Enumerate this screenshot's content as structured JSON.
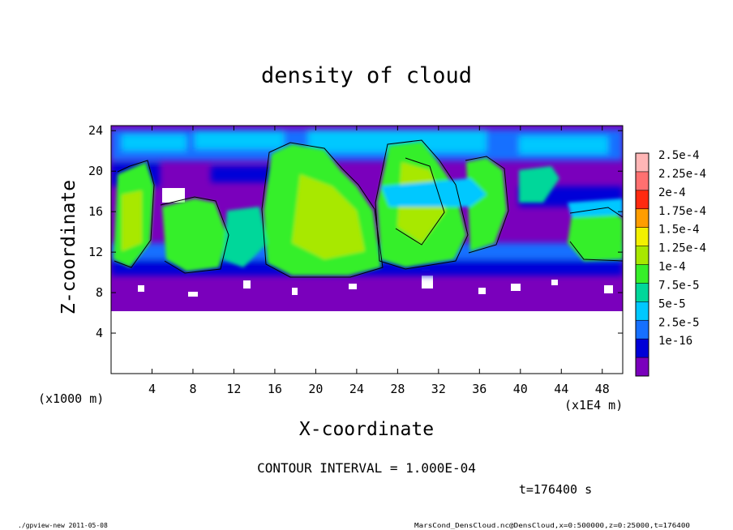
{
  "chart_data": {
    "type": "heatmap",
    "title": "density of cloud",
    "xlabel": "X-coordinate",
    "ylabel": "Z-coordinate",
    "x_unit_left": "(x1000 m)",
    "x_unit_right": "(x1E4 m)",
    "x_ticks": [
      "4",
      "8",
      "12",
      "16",
      "20",
      "24",
      "28",
      "32",
      "36",
      "40",
      "44",
      "48"
    ],
    "x_tick_values": [
      4,
      8,
      12,
      16,
      20,
      24,
      28,
      32,
      36,
      40,
      44,
      48
    ],
    "xlim": [
      0,
      50
    ],
    "y_ticks": [
      "4",
      "8",
      "12",
      "16",
      "20",
      "24"
    ],
    "y_tick_values": [
      4,
      8,
      12,
      16,
      20,
      24
    ],
    "ylim": [
      0,
      24.5
    ],
    "colorbar": {
      "labels": [
        "2.5e-4",
        "2.25e-4",
        "2e-4",
        "1.75e-4",
        "1.5e-4",
        "1.25e-4",
        "1e-4",
        "7.5e-5",
        "5e-5",
        "2.5e-5",
        "1e-16"
      ],
      "colors": [
        "#ffb6b6",
        "#ff7070",
        "#ff2a10",
        "#ff9d00",
        "#f3f000",
        "#a8e800",
        "#36ef29",
        "#00d79a",
        "#00c8ff",
        "#1670ff",
        "#0000d8",
        "#7a00bc"
      ]
    },
    "cloud_base_z": 6.4,
    "cloud_top_z": 24.5,
    "contour_interval_text": "CONTOUR INTERVAL = 1.000E-04",
    "time_text": "t=176400 s"
  },
  "footer": {
    "left": "./gpview-new  2011-05-08",
    "right": "MarsCond_DensCloud.nc@DensCloud,x=0:500000,z=0:25000,t=176400"
  }
}
